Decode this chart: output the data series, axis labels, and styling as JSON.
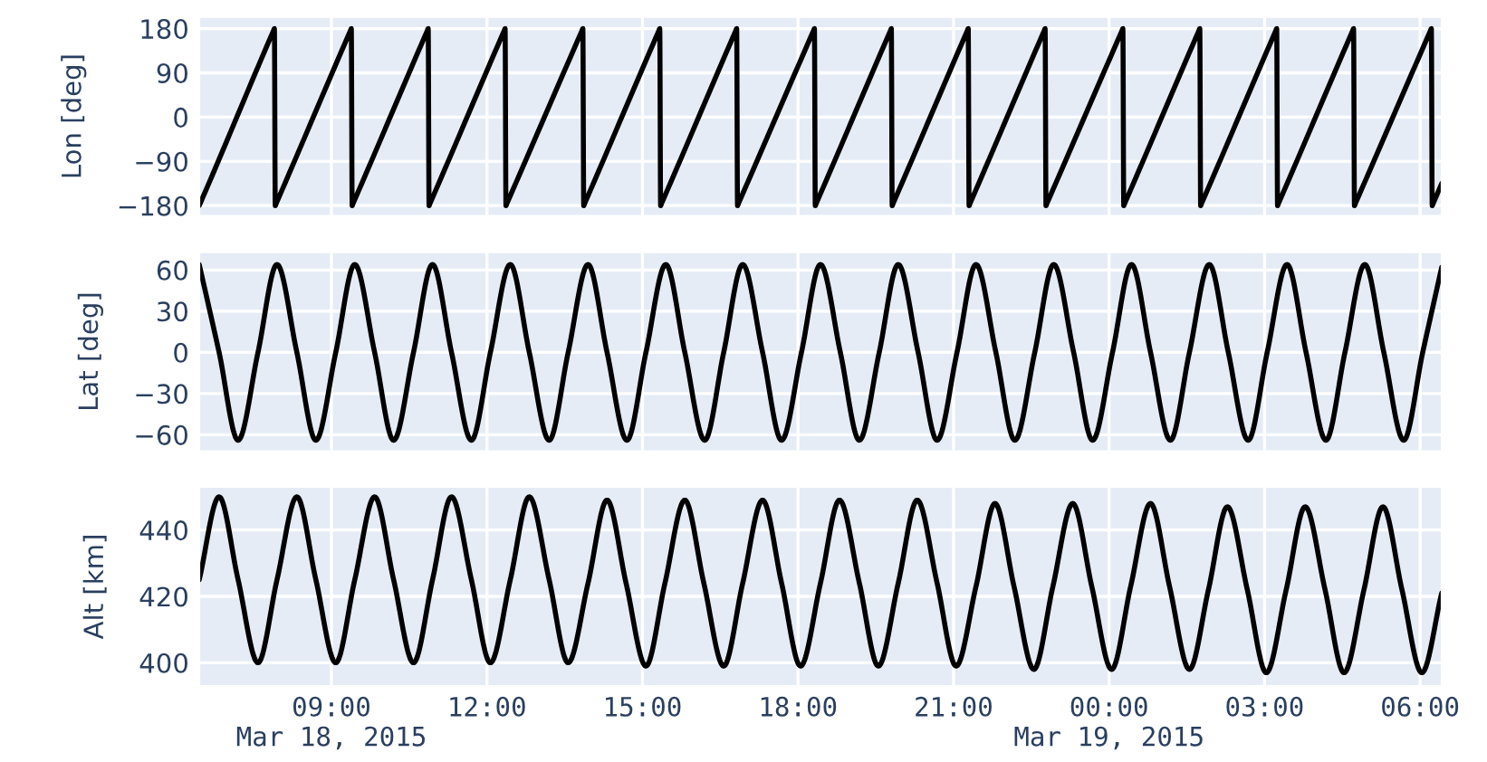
{
  "chart_data": [
    {
      "type": "line",
      "ylabel": "Lon [deg]",
      "xlim": [
        "2015-03-18T06:27",
        "2015-03-19T06:25"
      ],
      "ylim": [
        -201,
        204
      ],
      "yticks": [
        -180,
        -90,
        0,
        90,
        180
      ],
      "grid": true,
      "tick_labels": "y",
      "xticks": [
        "2015-03-18T09:00",
        "2015-03-18T12:00",
        "2015-03-18T15:00",
        "2015-03-18T18:00",
        "2015-03-18T21:00",
        "2015-03-19T00:00",
        "2015-03-19T03:00",
        "2015-03-19T06:00"
      ],
      "x": [
        "2015-03-18T06:27",
        "2015-03-18T06:28",
        "2015-03-18T07:53",
        "2015-03-18T07:54",
        "2015-03-18T07:55",
        "2015-03-18T07:56",
        "2015-03-18T09:22",
        "2015-03-18T09:23",
        "2015-03-18T09:24",
        "2015-03-18T09:25",
        "2015-03-18T10:51",
        "2015-03-18T10:52",
        "2015-03-18T10:53",
        "2015-03-18T10:54",
        "2015-03-18T12:20",
        "2015-03-18T12:21",
        "2015-03-18T12:22",
        "2015-03-18T12:23",
        "2015-03-18T13:50",
        "2015-03-18T13:51",
        "2015-03-18T13:52",
        "2015-03-18T13:53",
        "2015-03-18T15:19",
        "2015-03-18T15:20",
        "2015-03-18T15:21",
        "2015-03-18T15:22",
        "2015-03-18T16:48",
        "2015-03-18T16:49",
        "2015-03-18T16:50",
        "2015-03-18T16:51",
        "2015-03-18T18:18",
        "2015-03-18T18:19",
        "2015-03-18T18:20",
        "2015-03-18T18:21",
        "2015-03-18T19:47",
        "2015-03-18T19:48",
        "2015-03-18T19:49",
        "2015-03-18T19:50",
        "2015-03-18T21:16",
        "2015-03-18T21:17",
        "2015-03-18T21:18",
        "2015-03-18T21:19",
        "2015-03-18T22:45",
        "2015-03-18T22:46",
        "2015-03-18T22:47",
        "2015-03-18T22:48",
        "2015-03-19T00:15",
        "2015-03-19T00:16",
        "2015-03-19T00:17",
        "2015-03-19T00:18",
        "2015-03-19T01:44",
        "2015-03-19T01:45",
        "2015-03-19T01:46",
        "2015-03-19T01:47",
        "2015-03-19T03:13",
        "2015-03-19T03:14",
        "2015-03-19T03:15",
        "2015-03-19T03:16",
        "2015-03-19T04:42",
        "2015-03-19T04:43",
        "2015-03-19T04:44",
        "2015-03-19T04:45",
        "2015-03-19T06:12",
        "2015-03-19T06:13",
        "2015-03-19T06:14",
        "2015-03-19T06:15",
        "2015-03-19T06:25"
      ],
      "series": [
        {
          "color": "#000000",
          "values": [
            -180,
            -176,
            176,
            180,
            -180,
            -176,
            176,
            180,
            -180,
            -176,
            176,
            180,
            -180,
            -176,
            176,
            180,
            -180,
            -176,
            176,
            180,
            -180,
            -176,
            176,
            180,
            -180,
            -176,
            176,
            180,
            -180,
            -176,
            176,
            180,
            -180,
            -176,
            176,
            180,
            -180,
            -176,
            176,
            180,
            -180,
            -176,
            176,
            180,
            -180,
            -176,
            176,
            180,
            -180,
            -176,
            176,
            180,
            -180,
            -176,
            176,
            180,
            -180,
            -176,
            176,
            180,
            -180,
            -176,
            176,
            180,
            -180,
            -176,
            -135
          ]
        }
      ]
    },
    {
      "type": "line",
      "ylabel": "Lat [deg]",
      "xlim": [
        "2015-03-18T06:27",
        "2015-03-19T06:25"
      ],
      "ylim": [
        -72,
        73
      ],
      "yticks": [
        -60,
        -30,
        0,
        30,
        60
      ],
      "grid": true,
      "tick_labels": "y",
      "xticks": [
        "2015-03-18T09:00",
        "2015-03-18T12:00",
        "2015-03-18T15:00",
        "2015-03-18T18:00",
        "2015-03-18T21:00",
        "2015-03-19T00:00",
        "2015-03-19T03:00",
        "2015-03-19T06:00"
      ],
      "x": [
        "2015-03-18T06:27",
        "2015-03-18T06:50",
        "2015-03-18T07:12",
        "2015-03-18T07:35",
        "2015-03-18T07:57",
        "2015-03-18T08:20",
        "2015-03-18T08:42",
        "2015-03-18T09:05",
        "2015-03-18T09:27",
        "2015-03-18T09:50",
        "2015-03-18T10:12",
        "2015-03-18T10:35",
        "2015-03-18T10:57",
        "2015-03-18T11:19",
        "2015-03-18T11:42",
        "2015-03-18T12:04",
        "2015-03-18T12:27",
        "2015-03-18T12:49",
        "2015-03-18T13:12",
        "2015-03-18T13:34",
        "2015-03-18T13:57",
        "2015-03-18T14:19",
        "2015-03-18T14:42",
        "2015-03-18T15:04",
        "2015-03-18T15:27",
        "2015-03-18T15:49",
        "2015-03-18T16:12",
        "2015-03-18T16:34",
        "2015-03-18T16:56",
        "2015-03-18T17:19",
        "2015-03-18T17:41",
        "2015-03-18T18:04",
        "2015-03-18T18:26",
        "2015-03-18T18:49",
        "2015-03-18T19:11",
        "2015-03-18T19:34",
        "2015-03-18T19:56",
        "2015-03-18T20:19",
        "2015-03-18T20:41",
        "2015-03-18T21:04",
        "2015-03-18T21:26",
        "2015-03-18T21:49",
        "2015-03-18T22:11",
        "2015-03-18T22:34",
        "2015-03-18T22:56",
        "2015-03-18T23:19",
        "2015-03-18T23:41",
        "2015-03-19T00:04",
        "2015-03-19T00:26",
        "2015-03-19T00:48",
        "2015-03-19T01:11",
        "2015-03-19T01:33",
        "2015-03-19T01:56",
        "2015-03-19T02:18",
        "2015-03-19T02:41",
        "2015-03-19T03:03",
        "2015-03-19T03:26",
        "2015-03-19T03:48",
        "2015-03-19T04:11",
        "2015-03-19T04:33",
        "2015-03-19T04:56",
        "2015-03-19T05:18",
        "2015-03-19T05:41",
        "2015-03-19T06:03",
        "2015-03-19T06:25"
      ],
      "series": [
        {
          "color": "#000000",
          "values": [
            64,
            0,
            -64,
            0,
            64,
            0,
            -64,
            0,
            64,
            0,
            -64,
            0,
            64,
            0,
            -64,
            0,
            64,
            0,
            -64,
            0,
            64,
            0,
            -64,
            0,
            64,
            0,
            -64,
            0,
            64,
            0,
            -64,
            0,
            64,
            0,
            -64,
            0,
            64,
            0,
            -64,
            0,
            64,
            0,
            -64,
            0,
            64,
            0,
            -64,
            0,
            64,
            0,
            -64,
            0,
            64,
            0,
            -64,
            0,
            64,
            0,
            -64,
            0,
            64,
            0,
            -64,
            0,
            62
          ]
        }
      ]
    },
    {
      "type": "line",
      "ylabel": "Alt [km]",
      "xlim": [
        "2015-03-18T06:27",
        "2015-03-19T06:25"
      ],
      "ylim": [
        393,
        453
      ],
      "yticks": [
        400,
        420,
        440
      ],
      "grid": true,
      "xticks": [
        {
          "value": "2015-03-18T09:00",
          "label": "09:00\nMar 18, 2015"
        },
        {
          "value": "2015-03-18T12:00",
          "label": "12:00"
        },
        {
          "value": "2015-03-18T15:00",
          "label": "15:00"
        },
        {
          "value": "2015-03-18T18:00",
          "label": "18:00"
        },
        {
          "value": "2015-03-18T21:00",
          "label": "21:00"
        },
        {
          "value": "2015-03-19T00:00",
          "label": "00:00\nMar 19, 2015"
        },
        {
          "value": "2015-03-19T03:00",
          "label": "03:00"
        },
        {
          "value": "2015-03-19T06:00",
          "label": "06:00"
        }
      ],
      "x": [
        "2015-03-18T06:27",
        "2015-03-18T06:50",
        "2015-03-18T07:12",
        "2015-03-18T07:35",
        "2015-03-18T07:57",
        "2015-03-18T08:20",
        "2015-03-18T08:42",
        "2015-03-18T09:05",
        "2015-03-18T09:27",
        "2015-03-18T09:50",
        "2015-03-18T10:12",
        "2015-03-18T10:35",
        "2015-03-18T10:57",
        "2015-03-18T11:19",
        "2015-03-18T11:42",
        "2015-03-18T12:04",
        "2015-03-18T12:27",
        "2015-03-18T12:49",
        "2015-03-18T13:12",
        "2015-03-18T13:34",
        "2015-03-18T13:57",
        "2015-03-18T14:19",
        "2015-03-18T14:41",
        "2015-03-18T15:04",
        "2015-03-18T15:26",
        "2015-03-18T15:49",
        "2015-03-18T16:11",
        "2015-03-18T16:34",
        "2015-03-18T16:56",
        "2015-03-18T17:19",
        "2015-03-18T17:41",
        "2015-03-18T18:03",
        "2015-03-18T18:26",
        "2015-03-18T18:48",
        "2015-03-18T19:11",
        "2015-03-18T19:33",
        "2015-03-18T19:56",
        "2015-03-18T20:18",
        "2015-03-18T20:41",
        "2015-03-18T21:03",
        "2015-03-18T21:26",
        "2015-03-18T21:48",
        "2015-03-18T22:10",
        "2015-03-18T22:33",
        "2015-03-18T22:55",
        "2015-03-18T23:18",
        "2015-03-18T23:40",
        "2015-03-19T00:03",
        "2015-03-19T00:25",
        "2015-03-19T00:48",
        "2015-03-19T01:10",
        "2015-03-19T01:33",
        "2015-03-19T01:55",
        "2015-03-19T02:17",
        "2015-03-19T02:40",
        "2015-03-19T03:02",
        "2015-03-19T03:25",
        "2015-03-19T03:47",
        "2015-03-19T04:10",
        "2015-03-19T04:32",
        "2015-03-19T04:55",
        "2015-03-19T05:17",
        "2015-03-19T05:39",
        "2015-03-19T06:02",
        "2015-03-19T06:25"
      ],
      "series": [
        {
          "color": "#000000",
          "values": [
            425,
            450,
            425,
            400,
            425,
            450,
            425,
            400,
            425,
            450,
            425,
            400,
            425,
            450,
            425,
            400,
            425,
            450,
            425,
            400,
            424,
            449,
            424,
            399,
            424,
            449,
            424,
            399,
            424,
            449,
            424,
            399,
            424,
            449,
            424,
            399,
            424,
            449,
            424,
            399,
            423,
            448,
            423,
            398,
            423,
            448,
            423,
            398,
            423,
            448,
            423,
            398,
            422,
            447,
            422,
            397,
            422,
            447,
            422,
            397,
            422,
            447,
            422,
            397,
            421
          ]
        }
      ]
    }
  ]
}
